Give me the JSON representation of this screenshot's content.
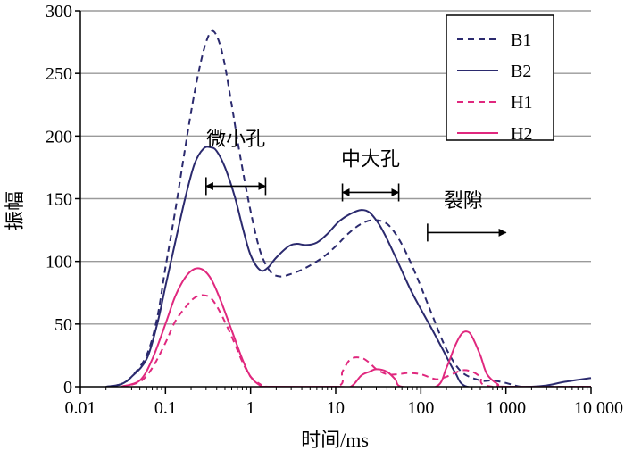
{
  "chart_data": {
    "type": "line",
    "title": "",
    "xlabel": "时间/ms",
    "ylabel": "振幅",
    "xscale": "log",
    "xlim": [
      0.01,
      10000
    ],
    "ylim": [
      0,
      300
    ],
    "x_ticks": [
      0.01,
      0.1,
      1,
      10,
      100,
      1000,
      10000
    ],
    "x_tick_labels": [
      "0.01",
      "0.1",
      "1",
      "10",
      "100",
      "1 000",
      "10 000"
    ],
    "y_ticks": [
      0,
      50,
      100,
      150,
      200,
      250,
      300
    ],
    "y_tick_labels": [
      "0",
      "50",
      "100",
      "150",
      "200",
      "250",
      "300"
    ],
    "grid": "horizontal",
    "legend_position": "top-right",
    "series": [
      {
        "name": "B1",
        "color": "#2b2a6e",
        "dash": "dashed",
        "x": [
          0.02,
          0.03,
          0.04,
          0.06,
          0.08,
          0.1,
          0.13,
          0.17,
          0.22,
          0.28,
          0.34,
          0.4,
          0.48,
          0.6,
          0.75,
          1.0,
          1.3,
          1.7,
          2.2,
          3,
          4.5,
          7,
          10,
          14,
          20,
          28,
          40,
          55,
          75,
          100,
          140,
          200,
          300,
          500,
          700,
          1000,
          1500,
          2500,
          10000
        ],
        "y": [
          0,
          2,
          8,
          25,
          55,
          95,
          140,
          190,
          235,
          268,
          283,
          280,
          262,
          225,
          185,
          140,
          108,
          92,
          88,
          90,
          95,
          103,
          112,
          122,
          130,
          133,
          130,
          118,
          100,
          80,
          55,
          30,
          12,
          5,
          5,
          3,
          0,
          0,
          0
        ]
      },
      {
        "name": "B2",
        "color": "#2b2a6e",
        "dash": "solid",
        "x": [
          0.02,
          0.03,
          0.04,
          0.06,
          0.08,
          0.1,
          0.13,
          0.17,
          0.22,
          0.28,
          0.34,
          0.4,
          0.5,
          0.65,
          0.8,
          1.0,
          1.3,
          1.6,
          2.0,
          2.8,
          3.5,
          4.5,
          6,
          8,
          11,
          15,
          20,
          25,
          32,
          40,
          55,
          75,
          100,
          130,
          180,
          250,
          350,
          1000,
          2000,
          3000,
          5000,
          10000
        ],
        "y": [
          0,
          2,
          8,
          22,
          50,
          80,
          115,
          150,
          178,
          190,
          191,
          188,
          175,
          152,
          128,
          105,
          93,
          95,
          103,
          112,
          114,
          113,
          115,
          122,
          132,
          138,
          141,
          139,
          130,
          118,
          98,
          78,
          62,
          48,
          30,
          12,
          0,
          0,
          0,
          1,
          4,
          7
        ]
      },
      {
        "name": "H1",
        "color": "#e0287e",
        "dash": "dashed",
        "x": [
          0.03,
          0.05,
          0.07,
          0.1,
          0.13,
          0.17,
          0.22,
          0.28,
          0.35,
          0.45,
          0.6,
          0.8,
          1.0,
          1.3,
          1.6,
          10,
          12,
          15,
          20,
          25,
          30,
          40,
          55,
          70,
          100,
          150,
          200,
          300,
          400,
          500,
          700,
          10000
        ],
        "y": [
          0,
          4,
          15,
          35,
          52,
          63,
          71,
          73,
          70,
          58,
          40,
          20,
          8,
          2,
          0,
          0,
          12,
          22,
          23,
          19,
          14,
          10,
          10,
          11,
          10,
          6,
          8,
          13,
          12,
          8,
          0,
          0
        ]
      },
      {
        "name": "H2",
        "color": "#e0287e",
        "dash": "solid",
        "x": [
          0.03,
          0.05,
          0.07,
          0.1,
          0.13,
          0.17,
          0.22,
          0.28,
          0.35,
          0.45,
          0.6,
          0.8,
          1.0,
          1.3,
          1.6,
          10,
          15,
          20,
          25,
          30,
          40,
          50,
          60,
          150,
          200,
          250,
          300,
          350,
          400,
          500,
          600,
          800,
          1000,
          10000
        ],
        "y": [
          0,
          5,
          22,
          50,
          72,
          87,
          94,
          93,
          85,
          68,
          45,
          22,
          8,
          1,
          0,
          0,
          0,
          9,
          12,
          14,
          12,
          6,
          0,
          0,
          15,
          32,
          42,
          44,
          40,
          25,
          10,
          2,
          0,
          0
        ]
      }
    ],
    "annotations": [
      {
        "text": "微小孔",
        "arrow": "both",
        "x_from": 0.3,
        "x_to": 1.5,
        "y": 160,
        "label_y": 198
      },
      {
        "text": "中大孔",
        "arrow": "both",
        "x_from": 12,
        "x_to": 55,
        "y": 155,
        "label_y": 182
      },
      {
        "text": "裂隙",
        "arrow": "right",
        "x_from": 120,
        "x_to": 1000,
        "y": 123,
        "label_y": 149
      }
    ]
  }
}
